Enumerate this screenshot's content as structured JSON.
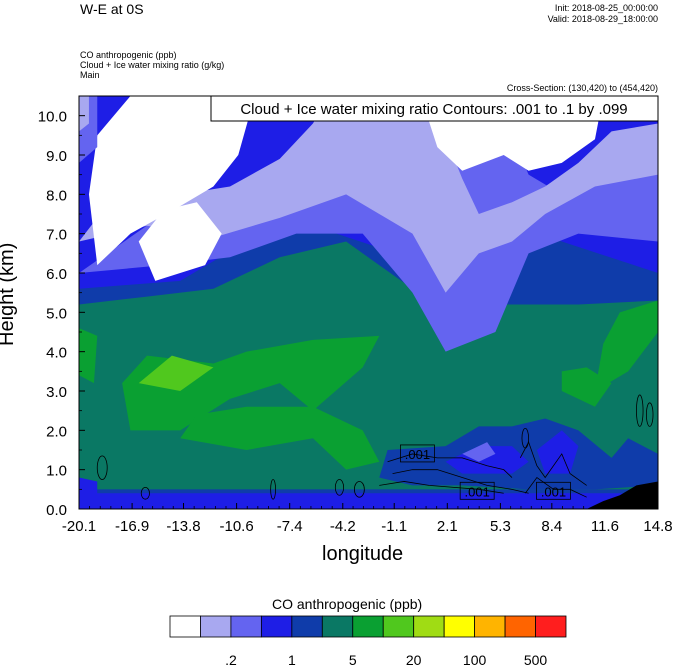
{
  "header": {
    "title": "W-E at 0S",
    "init": "Init: 2018-08-25_00:00:00",
    "valid": "Valid: 2018-08-29_18:00:00",
    "field1": "CO anthropogenic   (ppb)",
    "field2": "Cloud + Ice water mixing ratio   (g/kg)",
    "field3": "Main",
    "cross_section": "Cross-Section: (130,420) to (454,420)"
  },
  "chart_data": {
    "type": "heatmap",
    "title": "W-E at 0S",
    "xlabel": "longitude",
    "ylabel": "Height (km)",
    "x_ticks": [
      "-20.1",
      "-16.9",
      "-13.8",
      "-10.6",
      "-7.4",
      "-4.2",
      "-1.1",
      "2.1",
      "5.3",
      "8.4",
      "11.6",
      "14.8"
    ],
    "y_ticks": [
      "0.0",
      "1.0",
      "2.0",
      "3.0",
      "4.0",
      "5.0",
      "6.0",
      "7.0",
      "8.0",
      "9.0",
      "10.0"
    ],
    "xlim": [
      -20.1,
      14.8
    ],
    "ylim": [
      0.0,
      10.5
    ],
    "contour_label": "Cloud + Ice water mixing ratio Contours: .001 to .1 by .099",
    "contour_line_labels": [
      ".001",
      ".001",
      ".001"
    ],
    "colorbar": {
      "title": "CO anthropogenic  (ppb)",
      "colors": [
        "#ffffff",
        "#a8a8f0",
        "#6464f0",
        "#1e1ee6",
        "#0f3caa",
        "#0a7864",
        "#0aa032",
        "#50c81e",
        "#a0dc14",
        "#ffff00",
        "#ffb400",
        "#ff6400",
        "#ff1e1e"
      ],
      "tick_labels": [
        ".2",
        "1",
        "5",
        "20",
        "100",
        "500"
      ]
    },
    "regions": [
      {
        "color": "#1e1ee6",
        "points": [
          [
            -20.1,
            0
          ],
          [
            14.8,
            0
          ],
          [
            14.8,
            10.5
          ],
          [
            -20.1,
            10.5
          ]
        ]
      },
      {
        "color": "#0f3caa",
        "points": [
          [
            -20.1,
            0.4
          ],
          [
            14.8,
            0.4
          ],
          [
            14.8,
            6.0
          ],
          [
            9,
            6.8
          ],
          [
            3,
            8.0
          ],
          [
            -1,
            6.5
          ],
          [
            -6,
            7.2
          ],
          [
            -10,
            6.8
          ],
          [
            -14,
            5.8
          ],
          [
            -20.1,
            5.6
          ]
        ]
      },
      {
        "color": "#0a7864",
        "points": [
          [
            -20.1,
            0.5
          ],
          [
            14.8,
            0.5
          ],
          [
            14.8,
            5.3
          ],
          [
            10,
            5.2
          ],
          [
            5,
            5.2
          ],
          [
            0,
            5.6
          ],
          [
            -4,
            6.8
          ],
          [
            -8,
            6.4
          ],
          [
            -12,
            5.6
          ],
          [
            -16,
            5.4
          ],
          [
            -20.1,
            5.2
          ]
        ]
      },
      {
        "color": "#6464f0",
        "points": [
          [
            -20.1,
            6.0
          ],
          [
            -15,
            7.5
          ],
          [
            -10,
            7.8
          ],
          [
            -6,
            8.6
          ],
          [
            -3,
            9.4
          ],
          [
            -1,
            10.5
          ],
          [
            5,
            10.5
          ],
          [
            7,
            8.5
          ],
          [
            9,
            8.0
          ],
          [
            11,
            8.6
          ],
          [
            14.8,
            9.0
          ],
          [
            14.8,
            6.8
          ],
          [
            10,
            7.0
          ],
          [
            7,
            6.5
          ],
          [
            5,
            4.5
          ],
          [
            2,
            4.0
          ],
          [
            0,
            5.5
          ],
          [
            -3,
            7.0
          ],
          [
            -7,
            7.0
          ],
          [
            -11,
            6.4
          ],
          [
            -15,
            6.2
          ]
        ]
      },
      {
        "color": "#a8a8f0",
        "points": [
          [
            -20.1,
            6.8
          ],
          [
            -17,
            8.5
          ],
          [
            -14,
            8.0
          ],
          [
            -11,
            8.2
          ],
          [
            -8,
            8.9
          ],
          [
            -6,
            9.8
          ],
          [
            -5,
            10.5
          ],
          [
            1,
            10.5
          ],
          [
            3,
            8.4
          ],
          [
            4,
            7.5
          ],
          [
            6,
            7.8
          ],
          [
            8,
            8.2
          ],
          [
            10,
            8.8
          ],
          [
            12,
            9.6
          ],
          [
            14.8,
            9.8
          ],
          [
            14.8,
            8.5
          ],
          [
            11,
            8.2
          ],
          [
            8,
            7.5
          ],
          [
            6,
            6.8
          ],
          [
            4,
            6.5
          ],
          [
            2,
            5.5
          ],
          [
            0,
            7.0
          ],
          [
            -4,
            8.0
          ],
          [
            -8,
            7.4
          ],
          [
            -12,
            6.9
          ],
          [
            -16,
            7.2
          ]
        ]
      },
      {
        "color": "#ffffff",
        "points": [
          [
            -19,
            6.2
          ],
          [
            -17,
            7.0
          ],
          [
            -14,
            7.7
          ],
          [
            -12,
            8.2
          ],
          [
            -10.5,
            9.0
          ],
          [
            -9.5,
            10.5
          ],
          [
            -17,
            10.5
          ],
          [
            -19,
            9.5
          ],
          [
            -19.5,
            8.0
          ]
        ]
      },
      {
        "color": "#ffffff",
        "points": [
          [
            -15.5,
            5.8
          ],
          [
            -12.5,
            6.2
          ],
          [
            -11.5,
            7.0
          ],
          [
            -13,
            7.8
          ],
          [
            -15,
            7.6
          ],
          [
            -16.5,
            6.8
          ]
        ]
      },
      {
        "color": "#ffffff",
        "points": [
          [
            0.5,
            10.5
          ],
          [
            11.5,
            10.5
          ],
          [
            11,
            9.4
          ],
          [
            9,
            8.8
          ],
          [
            7,
            8.6
          ],
          [
            5.5,
            9.0
          ],
          [
            3,
            8.6
          ],
          [
            1.5,
            9.2
          ]
        ]
      },
      {
        "color": "#6464f0",
        "points": [
          [
            -20.1,
            8.8
          ],
          [
            -19,
            9.2
          ],
          [
            -19,
            10.5
          ],
          [
            -20.1,
            10.5
          ]
        ]
      },
      {
        "color": "#a8a8f0",
        "points": [
          [
            -20.1,
            9.6
          ],
          [
            -19.5,
            9.8
          ],
          [
            -19.5,
            10.5
          ],
          [
            -20.1,
            10.5
          ]
        ]
      },
      {
        "color": "#0aa032",
        "points": [
          [
            -17,
            2.0
          ],
          [
            -14,
            2.0
          ],
          [
            -11,
            2.8
          ],
          [
            -8,
            3.2
          ],
          [
            -6,
            2.5
          ],
          [
            -3,
            3.6
          ],
          [
            -2,
            4.4
          ],
          [
            -6,
            4.3
          ],
          [
            -10,
            4.0
          ],
          [
            -12,
            3.7
          ],
          [
            -16,
            3.9
          ],
          [
            -17.5,
            3.2
          ]
        ]
      },
      {
        "color": "#0aa032",
        "points": [
          [
            -14,
            1.8
          ],
          [
            -10,
            1.5
          ],
          [
            -6,
            1.8
          ],
          [
            -4,
            1.0
          ],
          [
            -2,
            1.2
          ],
          [
            -3,
            2.0
          ],
          [
            -6,
            2.6
          ],
          [
            -10,
            2.6
          ],
          [
            -13,
            2.4
          ]
        ]
      },
      {
        "color": "#0aa032",
        "points": [
          [
            11,
            3.0
          ],
          [
            13,
            3.5
          ],
          [
            14.8,
            4.5
          ],
          [
            14.8,
            5.3
          ],
          [
            12.5,
            5.0
          ],
          [
            11.5,
            4.2
          ]
        ]
      },
      {
        "color": "#0aa032",
        "points": [
          [
            9,
            3.0
          ],
          [
            11,
            2.6
          ],
          [
            12,
            3.2
          ],
          [
            10.5,
            3.6
          ],
          [
            9,
            3.5
          ]
        ]
      },
      {
        "color": "#0aa032",
        "points": [
          [
            -20.1,
            3.4
          ],
          [
            -19.2,
            3.2
          ],
          [
            -19.0,
            4.4
          ],
          [
            -20.1,
            4.6
          ]
        ]
      },
      {
        "color": "#50c81e",
        "points": [
          [
            -16.5,
            3.2
          ],
          [
            -14,
            3.0
          ],
          [
            -12,
            3.6
          ],
          [
            -14.5,
            3.9
          ]
        ]
      },
      {
        "color": "#0f3caa",
        "points": [
          [
            -1.5,
            1.5
          ],
          [
            2,
            1.6
          ],
          [
            4,
            2.1
          ],
          [
            6,
            2.1
          ],
          [
            8,
            2.3
          ],
          [
            10,
            2.0
          ],
          [
            12,
            1.3
          ],
          [
            13,
            1.8
          ],
          [
            14.8,
            1.4
          ],
          [
            14.8,
            0.6
          ],
          [
            11,
            0.5
          ],
          [
            7,
            0.5
          ],
          [
            3,
            0.6
          ],
          [
            0,
            0.6
          ],
          [
            -2,
            0.8
          ]
        ]
      },
      {
        "color": "#1e1ee6",
        "points": [
          [
            2,
            1.2
          ],
          [
            4,
            1.6
          ],
          [
            6,
            1.6
          ],
          [
            7,
            1.2
          ],
          [
            6,
            0.9
          ],
          [
            3,
            0.9
          ]
        ]
      },
      {
        "color": "#1e1ee6",
        "points": [
          [
            7.5,
            1.5
          ],
          [
            9,
            2.0
          ],
          [
            10,
            1.6
          ],
          [
            9.5,
            0.9
          ],
          [
            8,
            0.9
          ]
        ]
      },
      {
        "color": "#1e1ee6",
        "points": [
          [
            -20.1,
            0.0
          ],
          [
            -19,
            0.0
          ],
          [
            -19,
            0.7
          ],
          [
            -20.1,
            0.8
          ]
        ]
      },
      {
        "color": "#6464f0",
        "points": [
          [
            3,
            1.4
          ],
          [
            4.5,
            1.7
          ],
          [
            5,
            1.4
          ],
          [
            4,
            1.2
          ]
        ]
      },
      {
        "color": "#000000",
        "points": [
          [
            10.5,
            0
          ],
          [
            14.8,
            0
          ],
          [
            14.8,
            0.7
          ],
          [
            13.5,
            0.6
          ],
          [
            12.5,
            0.35
          ],
          [
            11.5,
            0.2
          ]
        ]
      }
    ],
    "contour_lines": [
      [
        [
          -1.5,
          1.2
        ],
        [
          0,
          1.4
        ],
        [
          1.5,
          1.3
        ],
        [
          3,
          1.3
        ],
        [
          4.5,
          1.1
        ],
        [
          5.5,
          1.0
        ],
        [
          6,
          0.8
        ]
      ],
      [
        [
          -1.2,
          0.9
        ],
        [
          0,
          1.0
        ],
        [
          1.5,
          1.0
        ],
        [
          3,
          0.8
        ],
        [
          4.5,
          0.6
        ],
        [
          6,
          0.5
        ],
        [
          7,
          0.4
        ]
      ],
      [
        [
          -2,
          0.6
        ],
        [
          -0.5,
          0.7
        ],
        [
          1,
          0.6
        ],
        [
          2.5,
          0.55
        ],
        [
          4,
          0.5
        ],
        [
          5.5,
          0.4
        ]
      ],
      [
        [
          6.5,
          1.3
        ],
        [
          7,
          1.7
        ],
        [
          7.5,
          1.1
        ],
        [
          8,
          0.8
        ],
        [
          9,
          1.4
        ],
        [
          9.5,
          0.9
        ],
        [
          10.5,
          0.6
        ]
      ],
      [
        [
          6.8,
          0.4
        ],
        [
          7.5,
          0.8
        ],
        [
          8.5,
          0.5
        ],
        [
          9.5,
          0.5
        ],
        [
          10.5,
          0.3
        ]
      ]
    ],
    "contour_ellipses": [
      {
        "cx": -18.7,
        "cy": 1.05,
        "rx": 0.3,
        "ry": 0.3
      },
      {
        "cx": -16.1,
        "cy": 0.4,
        "rx": 0.25,
        "ry": 0.15
      },
      {
        "cx": -8.4,
        "cy": 0.5,
        "rx": 0.15,
        "ry": 0.25
      },
      {
        "cx": -4.4,
        "cy": 0.55,
        "rx": 0.25,
        "ry": 0.2
      },
      {
        "cx": -3.2,
        "cy": 0.5,
        "rx": 0.3,
        "ry": 0.2
      },
      {
        "cx": 13.7,
        "cy": 2.5,
        "rx": 0.2,
        "ry": 0.4
      },
      {
        "cx": 14.3,
        "cy": 2.4,
        "rx": 0.2,
        "ry": 0.3
      },
      {
        "cx": 6.8,
        "cy": 1.8,
        "rx": 0.2,
        "ry": 0.25
      }
    ],
    "contour_label_positions": [
      [
        0.3,
        1.4
      ],
      [
        3.9,
        0.45
      ],
      [
        8.5,
        0.45
      ]
    ]
  }
}
